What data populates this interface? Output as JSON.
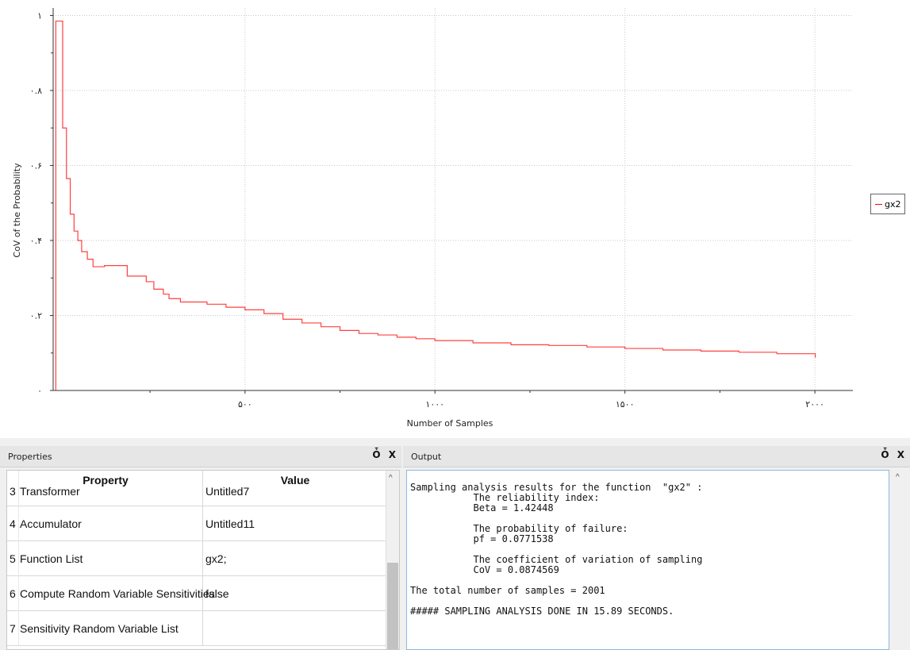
{
  "chart_data": {
    "type": "line",
    "xlabel": "Number of Samples",
    "ylabel": "CoV of the Probability",
    "xlim": [
      -5,
      2100
    ],
    "ylim": [
      0,
      1.02
    ],
    "x_ticks": [
      {
        "value": 500,
        "label": "۵۰۰"
      },
      {
        "value": 1000,
        "label": "۱۰۰۰"
      },
      {
        "value": 1500,
        "label": "۱۵۰۰"
      },
      {
        "value": 2000,
        "label": "۲۰۰۰"
      }
    ],
    "y_ticks": [
      {
        "value": 0,
        "label": "۰"
      },
      {
        "value": 0.2,
        "label": "۰.۲"
      },
      {
        "value": 0.4,
        "label": "۰.۴"
      },
      {
        "value": 0.6,
        "label": "۰.۶"
      },
      {
        "value": 0.8,
        "label": "۰.۸"
      },
      {
        "value": 1.0,
        "label": "۱"
      }
    ],
    "grid": true,
    "legend_position": "right",
    "series": [
      {
        "name": "gx2",
        "color": "#ff0000",
        "step": true,
        "x": [
          1,
          2,
          10,
          20,
          30,
          40,
          50,
          60,
          70,
          85,
          100,
          130,
          190,
          240,
          260,
          285,
          300,
          330,
          400,
          450,
          500,
          550,
          600,
          650,
          700,
          750,
          800,
          850,
          900,
          950,
          1000,
          1100,
          1200,
          1300,
          1400,
          1500,
          1600,
          1700,
          1800,
          1900,
          2001
        ],
        "y": [
          0,
          0.985,
          0.985,
          0.7,
          0.565,
          0.47,
          0.425,
          0.4,
          0.37,
          0.35,
          0.33,
          0.333,
          0.305,
          0.29,
          0.27,
          0.257,
          0.245,
          0.236,
          0.23,
          0.222,
          0.215,
          0.205,
          0.19,
          0.18,
          0.17,
          0.16,
          0.152,
          0.148,
          0.142,
          0.138,
          0.133,
          0.127,
          0.122,
          0.12,
          0.116,
          0.112,
          0.108,
          0.105,
          0.102,
          0.098,
          0.0874569
        ]
      }
    ]
  },
  "properties": {
    "title": "Properties",
    "controls": "Ȱ X",
    "headers": {
      "property": "Property",
      "value": "Value"
    },
    "rows": [
      {
        "num": "3",
        "name": "Transformer",
        "value": "Untitled7"
      },
      {
        "num": "4",
        "name": "Accumulator",
        "value": "Untitled11"
      },
      {
        "num": "5",
        "name": "Function List",
        "value": "gx2;"
      },
      {
        "num": "6",
        "name": "Compute Random Variable Sensitivities",
        "value": "false"
      },
      {
        "num": "7",
        "name": "Sensitivity Random Variable List",
        "value": ""
      }
    ]
  },
  "output": {
    "title": "Output",
    "controls": "Ȱ X",
    "text": "Sampling analysis results for the function  \"gx2\" :\n           The reliability index:\n           Beta = 1.42448\n\n           The probability of failure:\n           pf = 0.0771538\n\n           The coefficient of variation of sampling\n           CoV = 0.0874569\n\nThe total number of samples = 2001\n\n##### SAMPLING ANALYSIS DONE IN 15.89 SECONDS."
  }
}
